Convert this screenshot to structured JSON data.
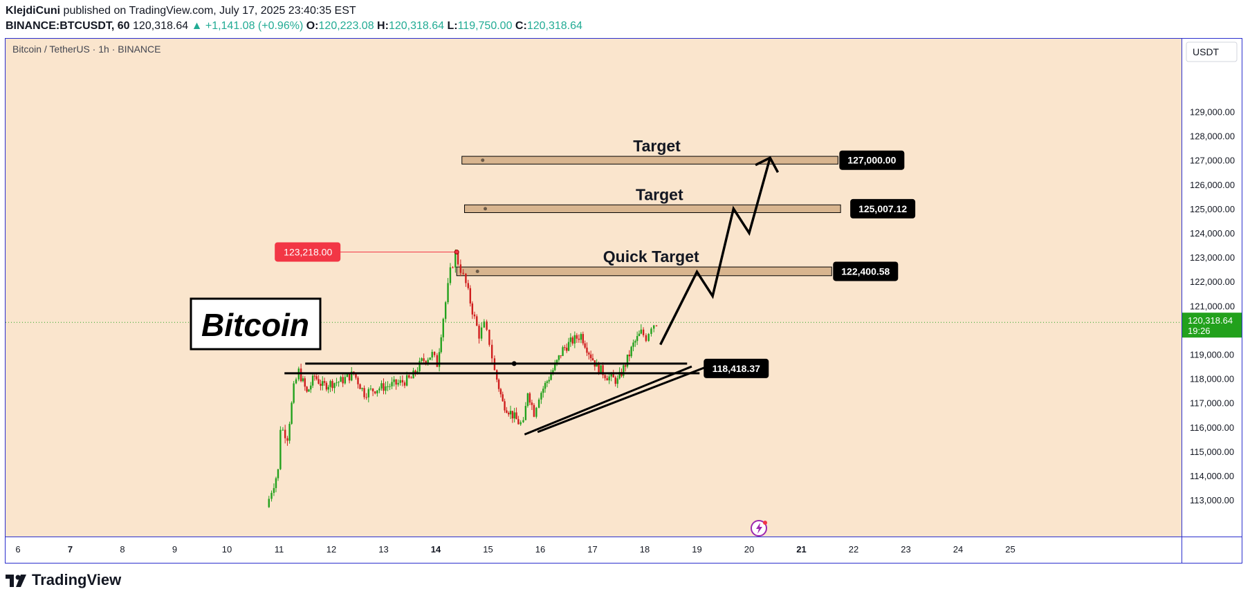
{
  "header": {
    "author": "KlejdiCuni",
    "published_text": " published on TradingView.com, July 17, 2025 23:40:35 EST",
    "symbol": "BINANCE:BTCUSDT, 60",
    "last": "120,318.64",
    "change": "▲ +1,141.08 (+0.96%)",
    "o_label": "O:",
    "o": "120,223.08",
    "h_label": "H:",
    "h": "120,318.64",
    "l_label": "L:",
    "l": "119,750.00",
    "c_label": "C:",
    "c": "120,318.64"
  },
  "chart": {
    "pane_title": "Bitcoin / TetherUS · 1h · BINANCE",
    "currency": "USDT",
    "overlay_text": "Bitcoin",
    "countdown": "19:26",
    "background": "#fae5cd",
    "up_color": "#22a11c",
    "down_color": "#cf1d1d"
  },
  "chart_data": {
    "type": "candlestick",
    "title": "Bitcoin / TetherUS · 1h · BINANCE",
    "x_ticks": [
      "6",
      "7",
      "8",
      "9",
      "10",
      "11",
      "12",
      "13",
      "14",
      "15",
      "16",
      "17",
      "18",
      "19",
      "20",
      "21",
      "22",
      "23",
      "24",
      "25"
    ],
    "bold_x_ticks": [
      "7",
      "14",
      "21"
    ],
    "y_ticks": [
      113000,
      114000,
      115000,
      116000,
      117000,
      118000,
      119000,
      120000,
      121000,
      122000,
      123000,
      124000,
      125000,
      126000,
      127000,
      128000,
      129000
    ],
    "y_tick_labels": [
      "113,000.00",
      "114,000.00",
      "115,000.00",
      "116,000.00",
      "117,000.00",
      "118,000.00",
      "119,000.00",
      "120,000.00",
      "121,000.00",
      "122,000.00",
      "123,000.00",
      "124,000.00",
      "125,000.00",
      "126,000.00",
      "127,000.00",
      "128,000.00",
      "129,000.00"
    ],
    "ylim": [
      112600,
      129800
    ],
    "xlim": [
      5.8,
      25.6
    ],
    "last_price": 120318.64,
    "last_price_label": "120,318.64",
    "price_path": [
      [
        10.78,
        112700
      ],
      [
        10.88,
        113400
      ],
      [
        11.0,
        114200
      ],
      [
        11.05,
        116000
      ],
      [
        11.18,
        115600
      ],
      [
        11.3,
        117600
      ],
      [
        11.4,
        118300
      ],
      [
        11.55,
        117400
      ],
      [
        11.7,
        118100
      ],
      [
        11.85,
        117700
      ],
      [
        12.0,
        117800
      ],
      [
        12.2,
        117900
      ],
      [
        12.45,
        118200
      ],
      [
        12.65,
        117400
      ],
      [
        12.9,
        117600
      ],
      [
        13.1,
        117700
      ],
      [
        13.3,
        117800
      ],
      [
        13.55,
        118000
      ],
      [
        13.75,
        118700
      ],
      [
        13.95,
        119000
      ],
      [
        14.05,
        118600
      ],
      [
        14.12,
        119900
      ],
      [
        14.3,
        122400
      ],
      [
        14.4,
        123100
      ],
      [
        14.5,
        122500
      ],
      [
        14.6,
        121900
      ],
      [
        14.72,
        120800
      ],
      [
        14.85,
        119800
      ],
      [
        14.95,
        120200
      ],
      [
        15.05,
        119500
      ],
      [
        15.15,
        118300
      ],
      [
        15.3,
        117000
      ],
      [
        15.45,
        116600
      ],
      [
        15.6,
        116200
      ],
      [
        15.7,
        116100
      ],
      [
        15.78,
        117500
      ],
      [
        15.9,
        116600
      ],
      [
        16.0,
        117300
      ],
      [
        16.15,
        117900
      ],
      [
        16.3,
        118500
      ],
      [
        16.45,
        119200
      ],
      [
        16.6,
        119500
      ],
      [
        16.8,
        119800
      ],
      [
        16.95,
        119100
      ],
      [
        17.1,
        118500
      ],
      [
        17.3,
        118100
      ],
      [
        17.5,
        117900
      ],
      [
        17.65,
        118600
      ],
      [
        17.8,
        119400
      ],
      [
        17.95,
        119900
      ],
      [
        18.05,
        119700
      ],
      [
        18.15,
        120200
      ],
      [
        18.25,
        120318
      ]
    ],
    "peak": {
      "x": 14.4,
      "y": 123218,
      "label": "123,218.00"
    },
    "target_zones": [
      {
        "label": "Target",
        "price": 127000,
        "price_label": "127,000.00",
        "y_low": 126840,
        "y_high": 127160,
        "x_start": 14.5,
        "x_end": 21.7
      },
      {
        "label": "Target",
        "price": 125007.12,
        "price_label": "125,007.12",
        "y_low": 124840,
        "y_high": 125160,
        "x_start": 14.55,
        "x_end": 21.75
      },
      {
        "label": "Quick Target",
        "price": 122400.58,
        "price_label": "122,400.58",
        "y_low": 122240,
        "y_high": 122600,
        "x_start": 14.4,
        "x_end": 21.58
      }
    ],
    "support": {
      "price": 118418.37,
      "price_label": "118,418.37",
      "x_start": 11.5,
      "x_end": 19.05
    },
    "trendlines": [
      {
        "x1": 15.7,
        "y1": 115700,
        "x2": 18.9,
        "y2": 118500
      },
      {
        "x1": 15.95,
        "y1": 115800,
        "x2": 19.2,
        "y2": 118500
      }
    ],
    "projection_path": [
      [
        18.3,
        119400
      ],
      [
        19.0,
        122400
      ],
      [
        19.3,
        121400
      ],
      [
        19.7,
        125000
      ],
      [
        20.0,
        124000
      ],
      [
        20.4,
        127100
      ]
    ],
    "arrow_head": [
      [
        20.12,
        126800
      ],
      [
        20.4,
        127100
      ],
      [
        20.55,
        126500
      ]
    ]
  }
}
